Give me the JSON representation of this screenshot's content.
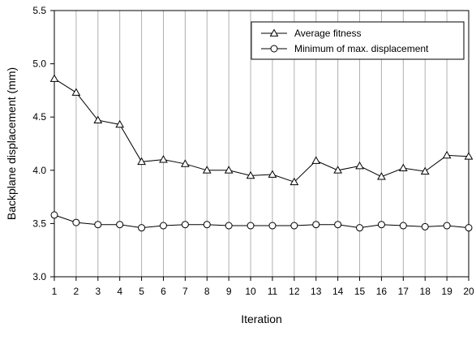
{
  "chart_data": {
    "type": "line",
    "xlabel": "Iteration",
    "ylabel": "Backplane displacement (mm)",
    "x": [
      1,
      2,
      3,
      4,
      5,
      6,
      7,
      8,
      9,
      10,
      11,
      12,
      13,
      14,
      15,
      16,
      17,
      18,
      19,
      20
    ],
    "xlim": [
      1,
      20
    ],
    "ylim": [
      3.0,
      5.5
    ],
    "yticks": [
      "3.0",
      "3.5",
      "4.0",
      "4.5",
      "5.0",
      "5.5"
    ],
    "xticks": [
      "1",
      "2",
      "3",
      "4",
      "5",
      "6",
      "7",
      "8",
      "9",
      "10",
      "11",
      "12",
      "13",
      "14",
      "15",
      "16",
      "17",
      "18",
      "19",
      "20"
    ],
    "grid": "vertical",
    "legend_position": "top-right",
    "series": [
      {
        "name": "Average fitness",
        "marker": "triangle",
        "values": [
          4.86,
          4.73,
          4.47,
          4.43,
          4.08,
          4.1,
          4.06,
          4.0,
          4.0,
          3.95,
          3.96,
          3.89,
          4.09,
          4.0,
          4.04,
          3.94,
          4.02,
          3.99,
          4.14,
          4.13
        ]
      },
      {
        "name": "Minimum of max. displacement",
        "marker": "circle",
        "values": [
          3.58,
          3.51,
          3.49,
          3.49,
          3.46,
          3.48,
          3.49,
          3.49,
          3.48,
          3.48,
          3.48,
          3.48,
          3.49,
          3.49,
          3.46,
          3.49,
          3.48,
          3.47,
          3.48,
          3.46
        ]
      }
    ]
  }
}
